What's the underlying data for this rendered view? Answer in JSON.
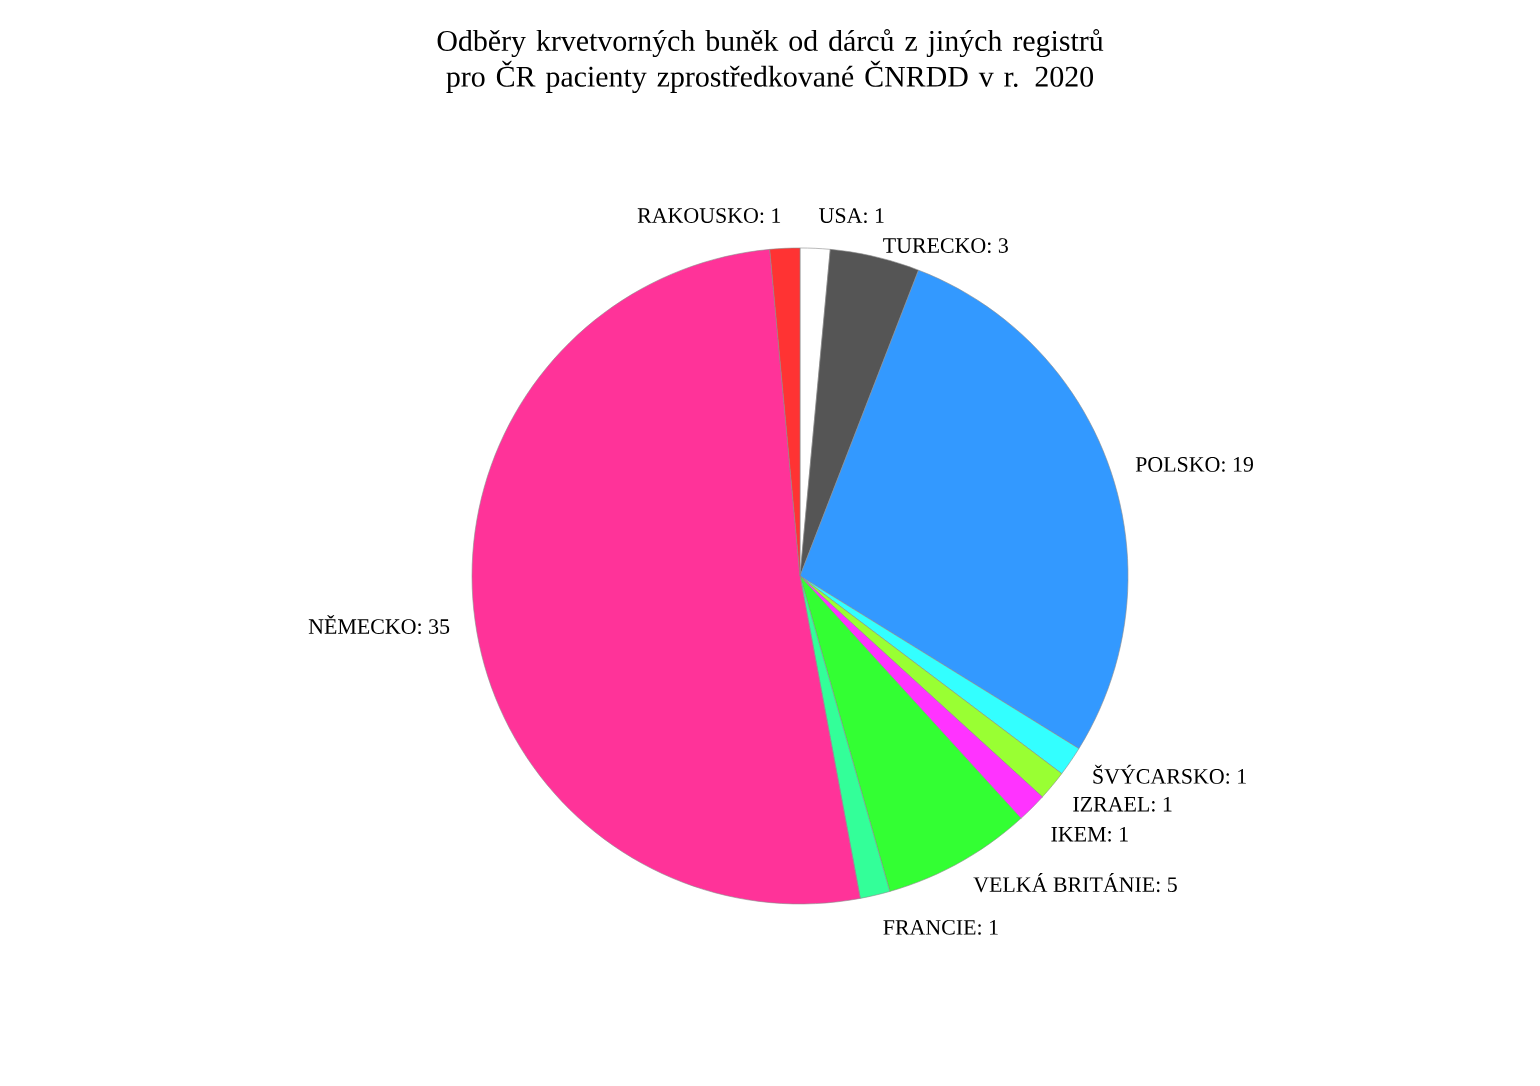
{
  "chart_data": {
    "type": "pie",
    "title": "Odběry krvetvorných buněk od dárců z jiných registrů pro ČR pacienty zprostředkované ČNRDD v r. 2020",
    "categories": [
      "USA: 1",
      "TURECKO: 3",
      "POLSKO: 19",
      "ŠVÝCARSKO: 1",
      "IZRAEL: 1",
      "IKEM: 1",
      "VELKÁ BRITÁNIE: 5",
      "FRANCIE: 1",
      "NĚMECKO: 35",
      "RAKOUSKO: 1"
    ],
    "values": [
      1,
      3,
      19,
      1,
      1,
      1,
      5,
      1,
      35,
      1
    ],
    "colors": [
      "#ffffff",
      "#555555",
      "#3399ff",
      "#33ffff",
      "#99ff33",
      "#ff33ff",
      "#33ff33",
      "#33ff99",
      "#ff3399",
      "#ff3333"
    ]
  }
}
